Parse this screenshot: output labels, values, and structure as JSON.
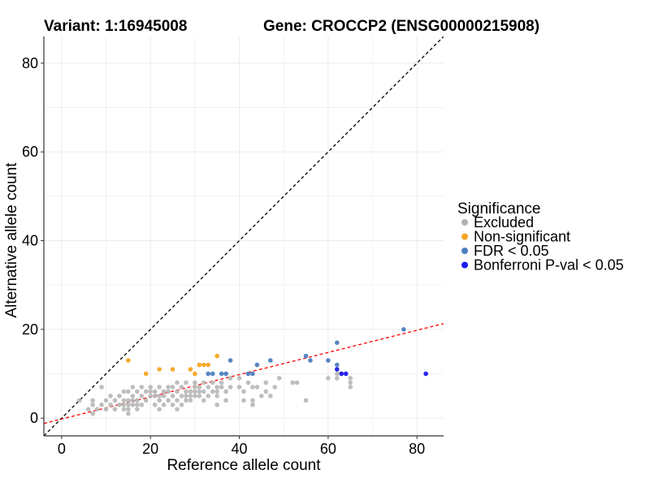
{
  "chart_data": {
    "type": "scatter",
    "title_left": "Variant: 1:16945008",
    "title_right": "Gene: CROCCP2 (ENSG00000215908)",
    "xlabel": "Reference allele count",
    "ylabel": "Alternative allele count",
    "xlim": [
      -4,
      86
    ],
    "ylim": [
      -4,
      86
    ],
    "x_ticks": [
      "0",
      "20",
      "40",
      "60",
      "80"
    ],
    "y_ticks": [
      "0",
      "20",
      "40",
      "60",
      "80"
    ],
    "grid": true,
    "legend_placement": "right",
    "legend_title": "Significance",
    "reference_lines": [
      {
        "name": "identity",
        "intercept": 0,
        "slope": 1,
        "color": "#000000",
        "dash": true
      },
      {
        "name": "fit",
        "intercept": -0.2,
        "slope": 0.25,
        "color": "#ff0000",
        "dash": true
      }
    ],
    "series": [
      {
        "name": "Excluded",
        "color": "#b3b3b3",
        "points": [
          [
            4,
            4
          ],
          [
            6,
            2
          ],
          [
            7,
            1
          ],
          [
            7,
            3
          ],
          [
            7,
            4
          ],
          [
            8,
            2
          ],
          [
            9,
            3
          ],
          [
            9,
            7
          ],
          [
            10,
            2
          ],
          [
            10,
            4
          ],
          [
            11,
            3
          ],
          [
            11,
            5
          ],
          [
            12,
            2
          ],
          [
            12,
            4
          ],
          [
            13,
            3
          ],
          [
            13,
            5
          ],
          [
            14,
            2
          ],
          [
            14,
            3
          ],
          [
            14,
            4
          ],
          [
            14,
            6
          ],
          [
            15,
            1
          ],
          [
            15,
            2
          ],
          [
            15,
            3
          ],
          [
            15,
            4
          ],
          [
            15,
            6
          ],
          [
            16,
            3
          ],
          [
            16,
            4
          ],
          [
            16,
            5
          ],
          [
            16,
            7
          ],
          [
            17,
            2
          ],
          [
            17,
            3
          ],
          [
            17,
            4
          ],
          [
            17,
            6
          ],
          [
            18,
            3
          ],
          [
            18,
            5
          ],
          [
            18,
            7
          ],
          [
            19,
            4
          ],
          [
            19,
            6
          ],
          [
            20,
            5
          ],
          [
            20,
            6
          ],
          [
            20,
            7
          ],
          [
            21,
            3
          ],
          [
            21,
            5
          ],
          [
            21,
            6
          ],
          [
            22,
            2
          ],
          [
            22,
            4
          ],
          [
            22,
            5
          ],
          [
            22,
            7
          ],
          [
            23,
            3
          ],
          [
            23,
            5
          ],
          [
            23,
            6
          ],
          [
            24,
            4
          ],
          [
            24,
            6
          ],
          [
            24,
            7
          ],
          [
            25,
            3
          ],
          [
            25,
            5
          ],
          [
            25,
            7
          ],
          [
            26,
            2
          ],
          [
            26,
            4
          ],
          [
            26,
            6
          ],
          [
            26,
            8
          ],
          [
            27,
            3
          ],
          [
            27,
            5
          ],
          [
            27,
            7
          ],
          [
            28,
            4
          ],
          [
            28,
            5
          ],
          [
            28,
            6
          ],
          [
            28,
            8
          ],
          [
            29,
            4
          ],
          [
            29,
            5
          ],
          [
            29,
            6
          ],
          [
            30,
            5
          ],
          [
            30,
            6
          ],
          [
            30,
            7
          ],
          [
            30,
            8
          ],
          [
            31,
            5
          ],
          [
            31,
            6
          ],
          [
            31,
            7
          ],
          [
            32,
            4
          ],
          [
            32,
            6
          ],
          [
            32,
            8
          ],
          [
            33,
            5
          ],
          [
            33,
            7
          ],
          [
            34,
            6
          ],
          [
            34,
            8
          ],
          [
            35,
            3
          ],
          [
            35,
            5
          ],
          [
            35,
            6
          ],
          [
            35,
            7
          ],
          [
            36,
            7
          ],
          [
            36,
            8
          ],
          [
            37,
            4
          ],
          [
            37,
            6
          ],
          [
            38,
            7
          ],
          [
            38,
            9
          ],
          [
            40,
            7
          ],
          [
            40,
            9
          ],
          [
            41,
            4
          ],
          [
            41,
            6
          ],
          [
            42,
            8
          ],
          [
            43,
            3
          ],
          [
            43,
            4
          ],
          [
            43,
            7
          ],
          [
            44,
            7
          ],
          [
            45,
            5
          ],
          [
            46,
            6
          ],
          [
            46,
            8
          ],
          [
            47,
            5
          ],
          [
            48,
            7
          ],
          [
            49,
            9
          ],
          [
            52,
            8
          ],
          [
            53,
            8
          ],
          [
            55,
            4
          ],
          [
            60,
            9
          ],
          [
            62,
            9
          ],
          [
            62,
            10
          ],
          [
            63,
            10
          ],
          [
            65,
            8
          ],
          [
            65,
            9
          ],
          [
            65,
            7
          ]
        ]
      },
      {
        "name": "Non-significant",
        "color": "#f5a623",
        "points": [
          [
            15,
            13
          ],
          [
            19,
            10
          ],
          [
            22,
            11
          ],
          [
            25,
            11
          ],
          [
            29,
            11
          ],
          [
            30,
            10
          ],
          [
            31,
            12
          ],
          [
            32,
            12
          ],
          [
            33,
            12
          ],
          [
            35,
            14
          ]
        ]
      },
      {
        "name": "FDR < 0.05",
        "color": "#4d7fbf",
        "points": [
          [
            33,
            10
          ],
          [
            34,
            10
          ],
          [
            36,
            10
          ],
          [
            37,
            10
          ],
          [
            38,
            13
          ],
          [
            42,
            10
          ],
          [
            43,
            10
          ],
          [
            44,
            12
          ],
          [
            47,
            13
          ],
          [
            55,
            14
          ],
          [
            56,
            13
          ],
          [
            60,
            13
          ],
          [
            62,
            17
          ],
          [
            62,
            12
          ],
          [
            77,
            20
          ]
        ]
      },
      {
        "name": "Bonferroni P-val < 0.05",
        "color": "#1a1aee",
        "points": [
          [
            62,
            11
          ],
          [
            63,
            10
          ],
          [
            64,
            10
          ],
          [
            82,
            10
          ]
        ]
      }
    ]
  }
}
